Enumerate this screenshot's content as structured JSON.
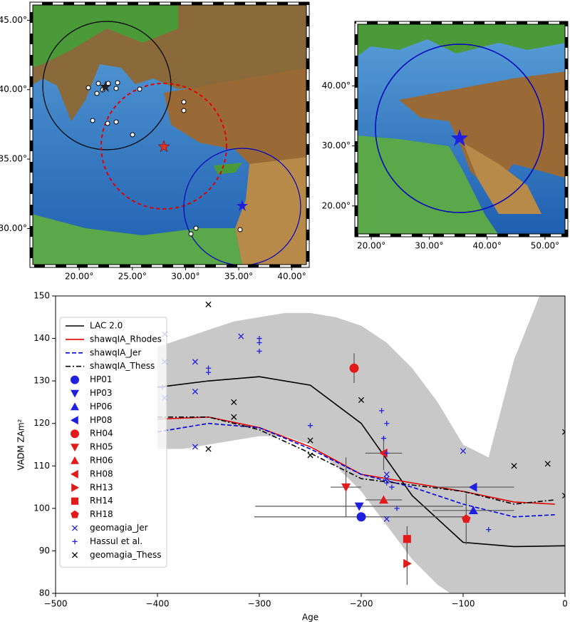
{
  "chart_data": [
    {
      "type": "map",
      "xlim": [
        15.5,
        41.5
      ],
      "ylim": [
        27.3,
        46.2
      ],
      "xticks": [
        {
          "value": 20,
          "label": "20.00°"
        },
        {
          "value": 25,
          "label": "25.00°"
        },
        {
          "value": 30,
          "label": "30.00°"
        },
        {
          "value": 35,
          "label": "35.00°"
        },
        {
          "value": 40,
          "label": "40.00°"
        }
      ],
      "yticks": [
        {
          "value": 30,
          "label": "30.00°"
        },
        {
          "value": 35,
          "label": "35.00°"
        },
        {
          "value": 40,
          "label": "40.00°"
        },
        {
          "value": 45,
          "label": "45.00°"
        }
      ]
    },
    {
      "type": "map",
      "xlim": [
        17.4,
        53.7
      ],
      "ylim": [
        15.1,
        50.5
      ],
      "xticks": [
        {
          "value": 20,
          "label": "20.00°"
        },
        {
          "value": 30,
          "label": "30.00°"
        },
        {
          "value": 40,
          "label": "40.00°"
        },
        {
          "value": 50,
          "label": "50.00°"
        }
      ],
      "yticks": [
        {
          "value": 20,
          "label": "20.00°"
        },
        {
          "value": 30,
          "label": "30.00°"
        },
        {
          "value": 40,
          "label": "40.00°"
        }
      ]
    },
    {
      "type": "line",
      "xlabel": "Age",
      "ylabel": "VADM  ZAm²",
      "xlim": [
        -500,
        0
      ],
      "ylim": [
        80,
        150
      ],
      "xticks": [
        {
          "value": -500,
          "label": "−500"
        },
        {
          "value": -400,
          "label": "−400"
        },
        {
          "value": -300,
          "label": "−300"
        },
        {
          "value": -200,
          "label": "−200"
        },
        {
          "value": -100,
          "label": "−100"
        },
        0
      ],
      "yticks": [
        80,
        90,
        100,
        110,
        120,
        130,
        140,
        150
      ],
      "legend": "upper left",
      "band": {
        "color": "#c8c8c8",
        "x": [
          -400,
          -375,
          -350,
          -325,
          -300,
          -275,
          -250,
          -225,
          -200,
          -175,
          -150,
          -125,
          -100,
          -75,
          -50,
          -25,
          0
        ],
        "upper": [
          138,
          140,
          142,
          144,
          145,
          146,
          146,
          145,
          143,
          139,
          133,
          125,
          115,
          112,
          135,
          150,
          150
        ],
        "lower": [
          114,
          114,
          115,
          116,
          117,
          117,
          115,
          110,
          104,
          96,
          88,
          82,
          78,
          76,
          75,
          75,
          75
        ]
      },
      "series": [
        {
          "name": "LAC 2.0",
          "kind": "line",
          "style": "solid",
          "color": "#000000",
          "x": [
            -400,
            -350,
            -300,
            -250,
            -200,
            -150,
            -100,
            -50,
            0
          ],
          "values": [
            128.5,
            130,
            131,
            129,
            120,
            103,
            92,
            91,
            91.2
          ]
        },
        {
          "name": "shawqIA_Rhodes",
          "kind": "line",
          "style": "solid",
          "color": "#e00000",
          "x": [
            -400,
            -350,
            -300,
            -250,
            -200,
            -150,
            -100,
            -50,
            -10
          ],
          "values": [
            121,
            121.5,
            119,
            114.5,
            108,
            106,
            104,
            101.5,
            101
          ]
        },
        {
          "name": "shawqIA_Jer",
          "kind": "line",
          "style": "dashed",
          "color": "#0000e0",
          "x": [
            -400,
            -350,
            -300,
            -250,
            -200,
            -150,
            -100,
            -50,
            -10
          ],
          "values": [
            118,
            120,
            119,
            114,
            108,
            105,
            101,
            98,
            98.5
          ]
        },
        {
          "name": "shawqIA_Thess",
          "kind": "line",
          "style": "dashdot",
          "color": "#000000",
          "x": [
            -400,
            -350,
            -300,
            -250,
            -200,
            -150,
            -100,
            -50,
            -10
          ],
          "values": [
            121.5,
            121.5,
            118.5,
            113,
            107,
            105.5,
            104,
            101,
            102
          ]
        },
        {
          "name": "HP01",
          "kind": "points",
          "marker": "circle",
          "color": "#1f1fe0",
          "x": [
            -200
          ],
          "values": [
            98
          ],
          "xerr": [
            105
          ]
        },
        {
          "name": "HP03",
          "kind": "points",
          "marker": "tri-down",
          "color": "#1f1fe0",
          "x": [
            -202
          ],
          "values": [
            100.5
          ],
          "xerr": [
            102
          ]
        },
        {
          "name": "HP06",
          "kind": "points",
          "marker": "tri-up",
          "color": "#1f1fe0",
          "x": [
            -90
          ],
          "values": [
            99.5
          ],
          "xerr": [
            40
          ]
        },
        {
          "name": "HP08",
          "kind": "points",
          "marker": "tri-left",
          "color": "#1f1fe0",
          "x": [
            -90
          ],
          "values": [
            105
          ],
          "xerr": [
            40
          ]
        },
        {
          "name": "RH04",
          "kind": "points",
          "marker": "circle",
          "color": "#e31a1a",
          "x": [
            -207
          ],
          "values": [
            133
          ],
          "yerr": [
            3.5
          ]
        },
        {
          "name": "RH05",
          "kind": "points",
          "marker": "tri-down",
          "color": "#e31a1a",
          "x": [
            -215
          ],
          "values": [
            105
          ],
          "xerr": [
            15
          ],
          "yerr": [
            7
          ]
        },
        {
          "name": "RH06",
          "kind": "points",
          "marker": "tri-up",
          "color": "#e31a1a",
          "x": [
            -178
          ],
          "values": [
            102
          ],
          "xerr": [
            18
          ]
        },
        {
          "name": "RH08",
          "kind": "points",
          "marker": "tri-left",
          "color": "#e31a1a",
          "x": [
            -178
          ],
          "values": [
            113
          ],
          "xerr": [
            18
          ],
          "yerr": [
            4
          ]
        },
        {
          "name": "RH13",
          "kind": "points",
          "marker": "tri-right",
          "color": "#e31a1a",
          "x": [
            -155
          ],
          "values": [
            87
          ],
          "yerr": [
            5
          ]
        },
        {
          "name": "RH14",
          "kind": "points",
          "marker": "square",
          "color": "#e31a1a",
          "x": [
            -155
          ],
          "values": [
            92.8
          ],
          "yerr": [
            3
          ]
        },
        {
          "name": "RH18",
          "kind": "points",
          "marker": "pentagon",
          "color": "#e31a1a",
          "x": [
            -97
          ],
          "values": [
            97.5
          ],
          "xerr": [
            3
          ],
          "yerr": [
            6
          ]
        },
        {
          "name": "geomagia_Jer",
          "kind": "points",
          "marker": "x",
          "color": "#1f1fe0",
          "x": [
            -393,
            -393,
            -393,
            -363,
            -363,
            -363,
            -318,
            -175,
            -175,
            -175,
            -100
          ],
          "values": [
            141,
            134.5,
            126,
            134.5,
            127.5,
            114.5,
            140.5,
            108,
            107,
            97.5,
            113.5
          ]
        },
        {
          "name": "Hassul et al.",
          "kind": "points",
          "marker": "plus",
          "color": "#1f1fe0",
          "x": [
            -395,
            -350,
            -350,
            -300,
            -300,
            -300,
            -250,
            -180,
            -175,
            -178,
            -175,
            -175,
            -170,
            -165,
            -75
          ],
          "values": [
            128.5,
            133,
            132,
            140,
            139,
            137,
            119.5,
            123,
            120,
            116.5,
            113,
            106,
            105,
            100,
            95
          ]
        },
        {
          "name": "geomagia_Thess",
          "kind": "points",
          "marker": "x",
          "color": "#000000",
          "x": [
            -350,
            -350,
            -325,
            -325,
            -250,
            -250,
            -200,
            -50,
            -17,
            0,
            0
          ],
          "values": [
            148,
            114,
            125,
            121.5,
            116,
            112.5,
            125.5,
            110,
            110.5,
            118,
            103
          ]
        }
      ]
    }
  ]
}
